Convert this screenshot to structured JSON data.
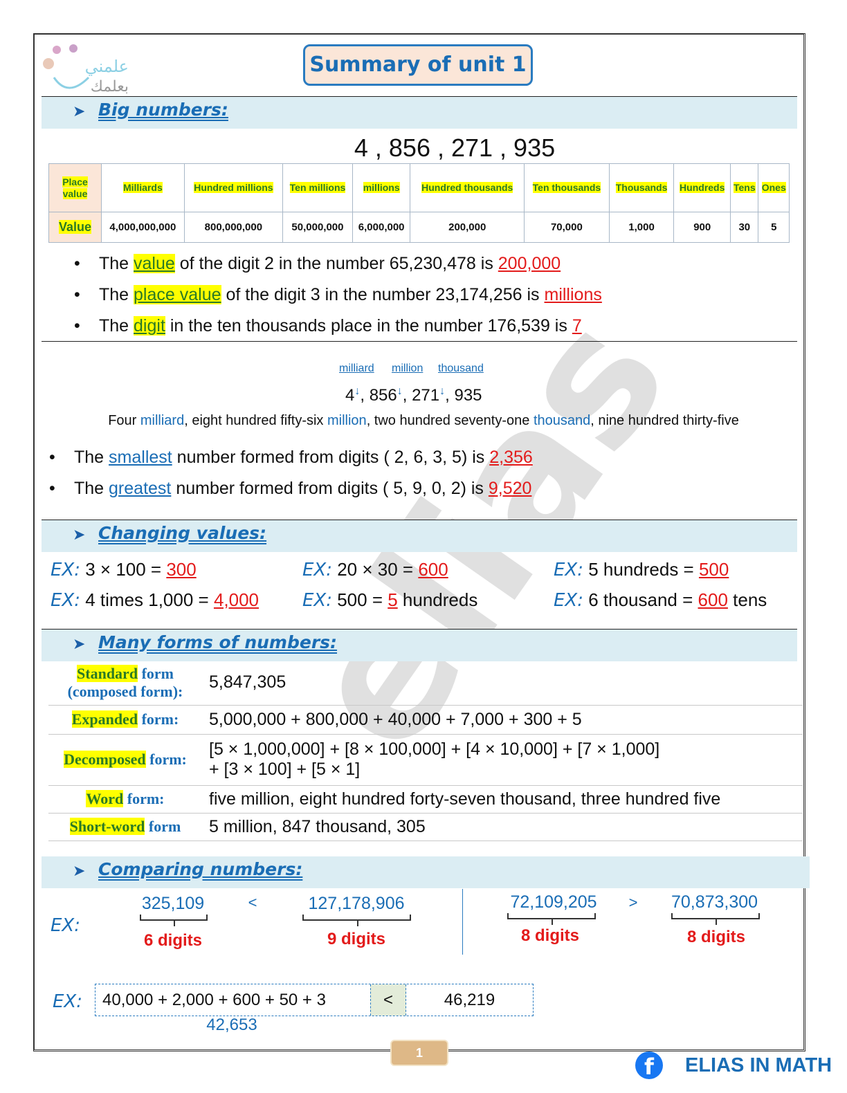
{
  "logo_text": "علمني بعلمك",
  "watermark": "elias",
  "title": "Summary of unit 1",
  "sections": {
    "big": "Big numbers:",
    "changing": "Changing values:",
    "forms": "Many forms of numbers:",
    "comparing": "Comparing numbers:"
  },
  "big_number": "4 , 856 , 271 , 935",
  "table": {
    "row_labels": [
      "Place value",
      "Value"
    ],
    "headers": [
      "Milliards",
      "Hundred millions",
      "Ten millions",
      "millions",
      "Hundred thousands",
      "Ten thousands",
      "Thousands",
      "Hundreds",
      "Tens",
      "Ones"
    ],
    "values": [
      "4,000,000,000",
      "800,000,000",
      "50,000,000",
      "6,000,000",
      "200,000",
      "70,000",
      "1,000",
      "900",
      "30",
      "5"
    ]
  },
  "bullets1": [
    {
      "a": "The ",
      "k": "value",
      "b": " of the digit 2 in the number 65,230,478 is ",
      "ans": "200,000"
    },
    {
      "a": "The ",
      "k": "place value",
      "b": " of the digit 3 in the number 23,174,256 is ",
      "ans": "millions"
    },
    {
      "a": "The ",
      "k": "digit",
      "b": " in the ten thousands place in the number 176,539 is ",
      "ans": "7"
    }
  ],
  "period_labels": [
    "milliard",
    "million",
    "thousand"
  ],
  "period_number": [
    "4",
    ", 856",
    ", 271",
    ", 935"
  ],
  "word_line": [
    "Four ",
    "milliard",
    ", eight hundred fifty-six ",
    "million",
    ", two hundred seventy-one ",
    "thousand",
    ", nine hundred thirty-five"
  ],
  "bullets2": [
    {
      "a": "The ",
      "k": "smallest",
      "b": " number formed from digits ( 2, 6, 3, 5) is ",
      "ans": "2,356"
    },
    {
      "a": "The ",
      "k": "greatest",
      "b": " number formed from digits ( 5, 9, 0, 2) is ",
      "ans": "9,520"
    }
  ],
  "ex_label": "EX:",
  "changing": [
    {
      "a": " 3 × 100 = ",
      "ans": "300",
      "b": ""
    },
    {
      "a": " 20 × 30 = ",
      "ans": "600",
      "b": ""
    },
    {
      "a": " 5 hundreds = ",
      "ans": "500",
      "b": ""
    },
    {
      "a": " 4 times 1,000 = ",
      "ans": "4,000",
      "b": ""
    },
    {
      "a": " 500 = ",
      "ans": "5",
      "b": " hundreds"
    },
    {
      "a": " 6 thousand = ",
      "ans": "600",
      "b": " tens"
    }
  ],
  "forms": [
    {
      "hl": "Standard",
      "rest": " form",
      "extra": "(composed form):",
      "value": "5,847,305"
    },
    {
      "hl": "Expanded",
      "rest": " form:",
      "extra": "",
      "value": "5,000,000 + 800,000 + 40,000 + 7,000 + 300 + 5"
    },
    {
      "hl": "Decomposed",
      "rest": " form:",
      "extra": "",
      "value": "[5 × 1,000,000] + [8 × 100,000] + [4 × 10,000] + [7 × 1,000]",
      "value2": "+ [3 × 100] + [5 × 1]"
    },
    {
      "hl": "Word",
      "rest": " form:",
      "extra": "",
      "value": "five million, eight hundred forty-seven thousand, three hundred five"
    },
    {
      "hl": "Short-word",
      "rest": " form",
      "extra": "",
      "value": "5 million, 847 thousand, 305"
    }
  ],
  "compare": [
    {
      "a": "325,109",
      "sign": "<",
      "b": "127,178,906",
      "da": "6 digits",
      "db": "9 digits"
    },
    {
      "a": "72,109,205",
      "sign": ">",
      "b": "70,873,300",
      "da": "8 digits",
      "db": "8 digits"
    }
  ],
  "compare_expr": {
    "left": "40,000 + 2,000  + 600  + 50 + 3",
    "sign": "<",
    "right": "46,219",
    "sum": "42,653"
  },
  "page_number": "1",
  "footer_brand": "ELIAS IN MATH",
  "colors": {
    "accent": "#1a6db5",
    "answer": "#e31b1b",
    "highlight": "#ffff00",
    "band": "#dbedf3"
  }
}
